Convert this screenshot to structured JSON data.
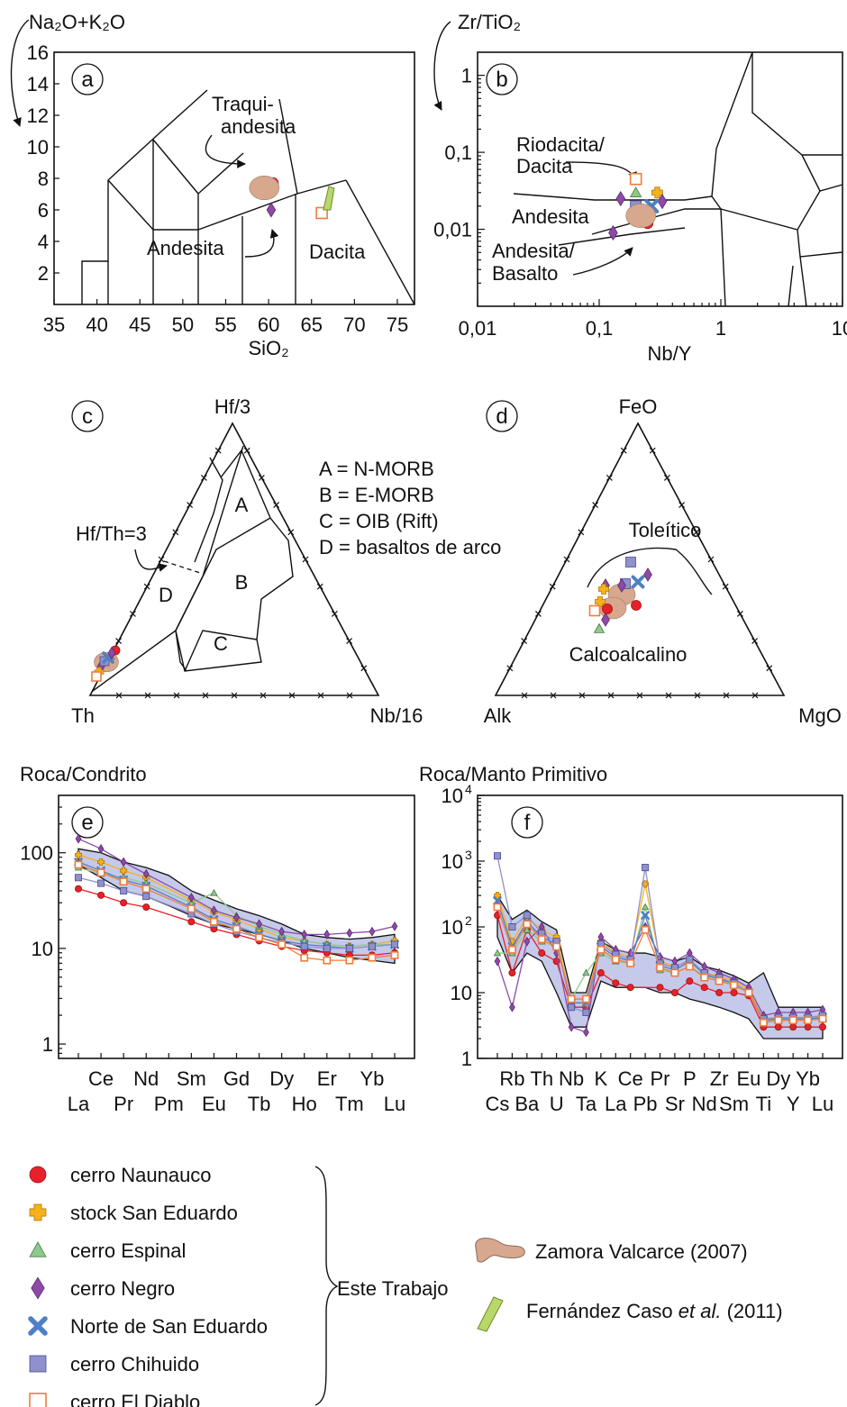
{
  "panels": {
    "a": {
      "letter": "a",
      "y_axis_label": "Na₂O+K₂O",
      "x_axis_label": "SiO₂",
      "x_ticks": [
        "35",
        "40",
        "45",
        "50",
        "55",
        "60",
        "65",
        "70",
        "75"
      ],
      "y_ticks": [
        "16",
        "14",
        "12",
        "10",
        "8",
        "6",
        "4",
        "2"
      ],
      "field_labels": {
        "traqui1": "Traqui-",
        "traqui2": "andesita",
        "andesita": "Andesita",
        "dacita": "Dacita"
      }
    },
    "b": {
      "letter": "b",
      "y_axis_label": "Zr/TiO₂",
      "x_axis_label": "Nb/Y",
      "x_ticks": [
        "0,01",
        "0,1",
        "1",
        "10"
      ],
      "y_ticks": [
        "1",
        "0,1",
        "0,01"
      ],
      "field_labels": {
        "riodacita1": "Riodacita/",
        "riodacita2": "Dacita",
        "andesita": "Andesita",
        "andbas1": "Andesita/",
        "andbas2": "Basalto"
      }
    },
    "c": {
      "letter": "c",
      "apex_top": "Hf/3",
      "apex_left": "Th",
      "apex_right": "Nb/16",
      "field_labels": {
        "A": "A",
        "B": "B",
        "C": "C",
        "D": "D"
      },
      "ratio_label": "Hf/Th=3",
      "legend": [
        "A = N-MORB",
        "B = E-MORB",
        "C = OIB (Rift)",
        "D = basaltos de arco"
      ]
    },
    "d": {
      "letter": "d",
      "apex_top": "FeO",
      "apex_left": "Alk",
      "apex_right": "MgO",
      "field_labels": {
        "toleitico": "Toleítico",
        "calcoalcalino": "Calcoalcalino"
      }
    },
    "e": {
      "letter": "e",
      "title": "Roca/Condrito",
      "y_ticks": [
        "100",
        "10",
        "1"
      ],
      "x_labels_top": [
        "Ce",
        "Nd",
        "Sm",
        "Gd",
        "Dy",
        "Er",
        "Yb"
      ],
      "x_labels_bottom": [
        "La",
        "Pr",
        "Pm",
        "Eu",
        "Tb",
        "Ho",
        "Tm",
        "Lu"
      ]
    },
    "f": {
      "letter": "f",
      "title": "Roca/Manto Primitivo",
      "y_ticks": [
        "10",
        "10",
        "10",
        "10",
        "1"
      ],
      "y_exponents": [
        "4",
        "3",
        "2",
        "",
        ""
      ],
      "x_labels_top": [
        "Rb",
        "Th",
        "Nb",
        "K",
        "Ce",
        "Pr",
        "P",
        "Zr",
        "Eu",
        "Dy",
        "Yb"
      ],
      "x_labels_bottom": [
        "Cs",
        "Ba",
        "U",
        "Ta",
        "La",
        "Pb",
        "Sr",
        "Nd",
        "Sm",
        "Ti",
        "Y",
        "Lu"
      ]
    }
  },
  "legend": {
    "items": [
      {
        "label": "cerro Naunauco",
        "color": "#e8202a",
        "shape": "circle-icon"
      },
      {
        "label": "stock San Eduardo",
        "color": "#f5b21a",
        "shape": "cross-icon"
      },
      {
        "label": "cerro Espinal",
        "color": "#8fc98a",
        "shape": "triangle-icon"
      },
      {
        "label": "cerro Negro",
        "color": "#8e4aa6",
        "shape": "diamond-icon"
      },
      {
        "label": "Norte de San Eduardo",
        "color": "#4f7fc4",
        "shape": "x-icon"
      },
      {
        "label": "cerro Chihuido",
        "color": "#8f91cc",
        "shape": "square-icon"
      },
      {
        "label": "cerro El Diablo",
        "color": "#f07c3c",
        "shape": "open-square-icon"
      }
    ],
    "group_label": "Este Trabajo",
    "refs": [
      {
        "label": "Zamora Valcarce (2007)",
        "color": "#d7a78e"
      },
      {
        "pre": "Fernández Caso ",
        "em": "et al.",
        "post": " (2011)",
        "color": "#b8d96a"
      }
    ]
  },
  "colors": {
    "naunauco": "#e8202a",
    "san_eduardo": "#f5b21a",
    "espinal": "#8fc98a",
    "negro": "#8e4aa6",
    "norte": "#4f7fc4",
    "chihuido": "#8f91cc",
    "diablo": "#f07c3c",
    "zamora": "#d7a78e",
    "fernandez": "#b8d96a",
    "band": "#c5c9ea"
  },
  "chart_data": [
    {
      "type": "scatter",
      "title": "a",
      "xlabel": "SiO2",
      "ylabel": "Na2O+K2O",
      "xlim": [
        35,
        77
      ],
      "ylim": [
        0,
        16
      ],
      "points": [
        {
          "series": "cerro Naunauco",
          "x": 60.5,
          "y": 7.7
        },
        {
          "series": "cerro Negro",
          "x": 60.3,
          "y": 6.0
        },
        {
          "series": "cerro El Diablo",
          "x": 66.2,
          "y": 5.8
        },
        {
          "series": "Zamora Valcarce (2007)",
          "x": 59.5,
          "y": 7.4
        },
        {
          "series": "Fernández Caso et al. (2011)",
          "x": 66.8,
          "y": 6.8
        }
      ]
    },
    {
      "type": "scatter",
      "title": "b",
      "xlabel": "Nb/Y",
      "ylabel": "Zr/TiO2",
      "xscale": "log",
      "yscale": "log",
      "xlim": [
        0.01,
        10
      ],
      "ylim": [
        0.001,
        2
      ],
      "points": [
        {
          "series": "cerro Naunauco",
          "x": 0.25,
          "y": 0.012
        },
        {
          "series": "stock San Eduardo",
          "x": 0.3,
          "y": 0.03
        },
        {
          "series": "cerro Espinal",
          "x": 0.2,
          "y": 0.03
        },
        {
          "series": "cerro Negro",
          "x": 0.15,
          "y": 0.025
        },
        {
          "series": "cerro Negro",
          "x": 0.13,
          "y": 0.009
        },
        {
          "series": "cerro Negro",
          "x": 0.33,
          "y": 0.023
        },
        {
          "series": "Norte de San Eduardo",
          "x": 0.27,
          "y": 0.02
        },
        {
          "series": "cerro Chihuido",
          "x": 0.2,
          "y": 0.02
        },
        {
          "series": "cerro El Diablo",
          "x": 0.2,
          "y": 0.045
        },
        {
          "series": "Zamora Valcarce (2007)",
          "x": 0.22,
          "y": 0.015
        }
      ]
    },
    {
      "type": "line",
      "title": "Roca/Condrito",
      "yscale": "log",
      "ylim": [
        0.7,
        400
      ],
      "categories": [
        "La",
        "Ce",
        "Pr",
        "Nd",
        "Pm",
        "Sm",
        "Eu",
        "Gd",
        "Tb",
        "Dy",
        "Ho",
        "Er",
        "Tm",
        "Yb",
        "Lu"
      ],
      "series": [
        {
          "name": "cerro Naunauco",
          "values": [
            42,
            36,
            30,
            27,
            null,
            19,
            16,
            14,
            12,
            10.5,
            9.5,
            9,
            8.5,
            8.5,
            9
          ]
        },
        {
          "name": "stock San Eduardo",
          "values": [
            95,
            80,
            65,
            55,
            null,
            32,
            24,
            20,
            16,
            13,
            12,
            11,
            10.5,
            11,
            12
          ]
        },
        {
          "name": "cerro Espinal",
          "values": [
            70,
            60,
            55,
            48,
            null,
            30,
            38,
            22,
            17,
            14,
            12,
            11,
            10.5,
            11,
            11
          ]
        },
        {
          "name": "cerro Negro",
          "values": [
            140,
            110,
            80,
            60,
            null,
            34,
            25,
            21,
            18,
            15,
            14,
            14,
            14.5,
            15,
            17
          ]
        },
        {
          "name": "Norte de San Eduardo",
          "values": [
            80,
            65,
            52,
            45,
            null,
            27,
            20,
            17,
            14,
            12,
            11,
            10.5,
            10,
            10.5,
            11
          ]
        },
        {
          "name": "cerro Chihuido",
          "values": [
            55,
            48,
            40,
            35,
            null,
            23,
            18,
            15,
            13,
            11.5,
            10.5,
            10,
            10,
            10.5,
            11
          ]
        },
        {
          "name": "cerro El Diablo",
          "values": [
            75,
            62,
            50,
            42,
            null,
            26,
            19,
            16,
            13,
            11,
            8,
            7.5,
            7.5,
            8,
            8.5
          ]
        }
      ]
    },
    {
      "type": "line",
      "title": "Roca/Manto Primitivo",
      "yscale": "log",
      "ylim": [
        1,
        10000
      ],
      "categories": [
        "Cs",
        "Rb",
        "Ba",
        "Th",
        "U",
        "Nb",
        "Ta",
        "K",
        "La",
        "Ce",
        "Pb",
        "Pr",
        "Sr",
        "P",
        "Nd",
        "Zr",
        "Sm",
        "Eu",
        "Ti",
        "Dy",
        "Y",
        "Yb",
        "Lu"
      ],
      "series": [
        {
          "name": "cerro Naunauco",
          "values": [
            150,
            20,
            90,
            40,
            30,
            6,
            6,
            20,
            14,
            12,
            null,
            12,
            10,
            15,
            12,
            10,
            10,
            9,
            3,
            3,
            3,
            3,
            3
          ]
        },
        {
          "name": "stock San Eduardo",
          "values": [
            300,
            60,
            140,
            90,
            70,
            7,
            7,
            60,
            40,
            35,
            450,
            30,
            25,
            30,
            20,
            18,
            15,
            11,
            4,
            4,
            4,
            4,
            4.5
          ]
        },
        {
          "name": "cerro Espinal",
          "values": [
            40,
            40,
            90,
            60,
            50,
            8,
            20,
            40,
            30,
            28,
            200,
            22,
            20,
            25,
            18,
            16,
            13,
            10,
            3.5,
            4,
            4,
            4,
            4
          ]
        },
        {
          "name": "cerro Negro",
          "values": [
            30,
            6,
            60,
            100,
            40,
            3,
            2.5,
            70,
            45,
            40,
            100,
            35,
            30,
            40,
            25,
            20,
            16,
            12,
            4.5,
            5,
            5,
            5,
            5.5
          ]
        },
        {
          "name": "Norte de San Eduardo",
          "values": [
            250,
            50,
            120,
            70,
            55,
            7,
            7,
            50,
            35,
            30,
            150,
            26,
            22,
            30,
            19,
            16,
            14,
            10,
            3.8,
            4,
            4,
            4,
            4.2
          ]
        },
        {
          "name": "cerro Chihuido",
          "values": [
            1200,
            100,
            150,
            80,
            60,
            6,
            5,
            55,
            38,
            32,
            800,
            28,
            24,
            32,
            20,
            17,
            14,
            10,
            4,
            4.2,
            4.2,
            4.2,
            4.5
          ]
        },
        {
          "name": "cerro El Diablo",
          "values": [
            200,
            45,
            110,
            65,
            50,
            8,
            8,
            45,
            32,
            28,
            90,
            24,
            20,
            25,
            17,
            15,
            13,
            10,
            3.5,
            3.8,
            3.8,
            3.8,
            4
          ]
        }
      ]
    }
  ]
}
